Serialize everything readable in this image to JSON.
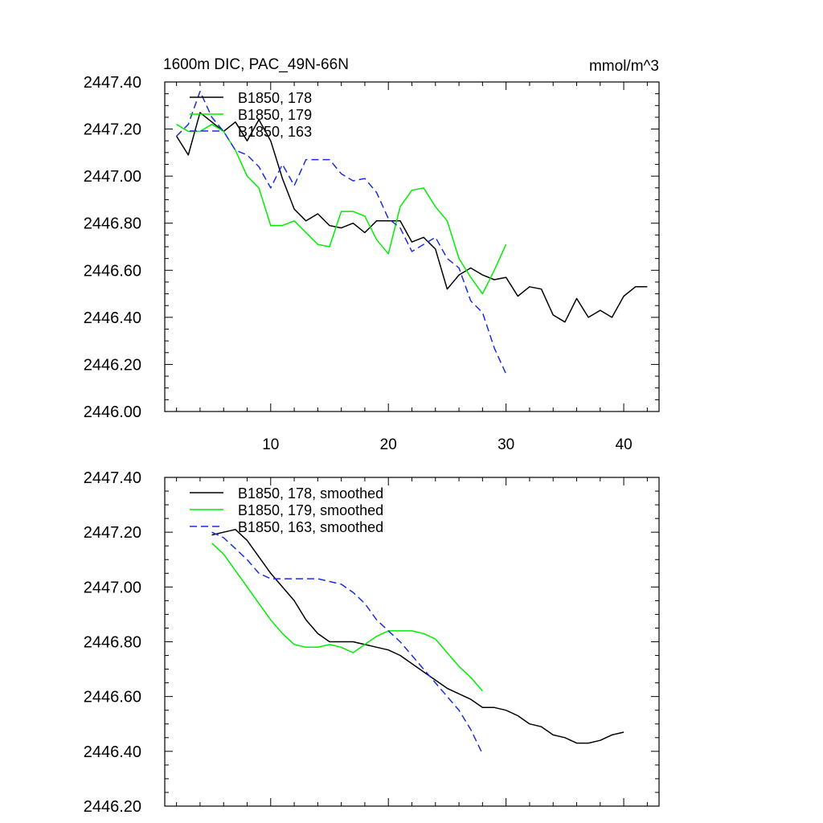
{
  "chart_data": [
    {
      "type": "line",
      "title": "1600m DIC, PAC_49N-66N",
      "units": "mmol/m^3",
      "xlabel": "",
      "ylabel": "",
      "xlim": [
        1,
        43
      ],
      "ylim": [
        2446.0,
        2447.4
      ],
      "x_ticks": [
        10,
        20,
        30,
        40
      ],
      "y_ticks": [
        "2446.00",
        "2446.20",
        "2446.40",
        "2446.60",
        "2446.80",
        "2447.00",
        "2447.20",
        "2447.40"
      ],
      "legend_position": "top-left",
      "series": [
        {
          "name": "B1850, 178",
          "color": "#000000",
          "dash": "solid",
          "x": [
            2,
            3,
            4,
            5,
            6,
            7,
            8,
            9,
            10,
            11,
            12,
            13,
            14,
            15,
            16,
            17,
            18,
            19,
            20,
            21,
            22,
            23,
            24,
            25,
            26,
            27,
            28,
            29,
            30,
            31,
            32,
            33,
            34,
            35,
            36,
            37,
            38,
            39,
            40,
            41,
            42
          ],
          "y": [
            2447.17,
            2447.09,
            2447.27,
            2447.23,
            2447.19,
            2447.23,
            2447.15,
            2447.24,
            2447.15,
            2446.99,
            2446.86,
            2446.81,
            2446.84,
            2446.79,
            2446.78,
            2446.8,
            2446.76,
            2446.81,
            2446.81,
            2446.81,
            2446.72,
            2446.74,
            2446.69,
            2446.52,
            2446.58,
            2446.61,
            2446.58,
            2446.56,
            2446.57,
            2446.49,
            2446.53,
            2446.52,
            2446.41,
            2446.38,
            2446.48,
            2446.4,
            2446.43,
            2446.4,
            2446.49,
            2446.53,
            2446.53
          ]
        },
        {
          "name": "B1850, 179",
          "color": "#00ee00",
          "dash": "solid",
          "x": [
            2,
            3,
            4,
            5,
            6,
            7,
            8,
            9,
            10,
            11,
            12,
            13,
            14,
            15,
            16,
            17,
            18,
            19,
            20,
            21,
            22,
            23,
            24,
            25,
            26,
            27,
            28,
            29,
            30
          ],
          "y": [
            2447.22,
            2447.19,
            2447.19,
            2447.22,
            2447.19,
            2447.11,
            2447.0,
            2446.95,
            2446.79,
            2446.79,
            2446.81,
            2446.76,
            2446.71,
            2446.7,
            2446.85,
            2446.85,
            2446.83,
            2446.73,
            2446.67,
            2446.87,
            2446.94,
            2446.95,
            2446.87,
            2446.81,
            2446.65,
            2446.57,
            2446.5,
            2446.6,
            2446.71
          ]
        },
        {
          "name": "B1850, 163",
          "color": "#1a2ee0",
          "dash": "dashed",
          "x": [
            2,
            3,
            4,
            5,
            6,
            7,
            8,
            9,
            10,
            11,
            12,
            13,
            14,
            15,
            16,
            17,
            18,
            19,
            20,
            21,
            22,
            23,
            24,
            25,
            26,
            27,
            28,
            29,
            30
          ],
          "y": [
            2447.17,
            2447.22,
            2447.36,
            2447.25,
            2447.19,
            2447.11,
            2447.09,
            2447.04,
            2446.95,
            2447.05,
            2446.96,
            2447.07,
            2447.07,
            2447.07,
            2447.01,
            2446.98,
            2446.99,
            2446.93,
            2446.82,
            2446.78,
            2446.68,
            2446.71,
            2446.74,
            2446.65,
            2446.61,
            2446.47,
            2446.42,
            2446.27,
            2446.16
          ]
        }
      ]
    },
    {
      "type": "line",
      "title": "",
      "xlabel": "",
      "ylabel": "",
      "xlim": [
        1,
        43
      ],
      "ylim": [
        2446.2,
        2447.4
      ],
      "x_ticks": [
        10,
        20,
        30,
        40
      ],
      "y_ticks": [
        "2446.20",
        "2446.40",
        "2446.60",
        "2446.80",
        "2447.00",
        "2447.20",
        "2447.40"
      ],
      "legend_position": "top-left",
      "series": [
        {
          "name": "B1850, 178, smoothed",
          "color": "#000000",
          "dash": "solid",
          "x": [
            5,
            6,
            7,
            8,
            9,
            10,
            11,
            12,
            13,
            14,
            15,
            16,
            17,
            18,
            19,
            20,
            21,
            22,
            23,
            24,
            25,
            26,
            27,
            28,
            29,
            30,
            31,
            32,
            33,
            34,
            35,
            36,
            37,
            38,
            39,
            40
          ],
          "y": [
            2447.19,
            2447.2,
            2447.21,
            2447.17,
            2447.11,
            2447.05,
            2447.0,
            2446.95,
            2446.88,
            2446.83,
            2446.8,
            2446.8,
            2446.8,
            2446.79,
            2446.78,
            2446.77,
            2446.75,
            2446.72,
            2446.69,
            2446.66,
            2446.63,
            2446.61,
            2446.59,
            2446.56,
            2446.56,
            2446.55,
            2446.53,
            2446.5,
            2446.49,
            2446.46,
            2446.45,
            2446.43,
            2446.43,
            2446.44,
            2446.46,
            2446.47
          ]
        },
        {
          "name": "B1850, 179, smoothed",
          "color": "#00ee00",
          "dash": "solid",
          "x": [
            5,
            6,
            7,
            8,
            9,
            10,
            11,
            12,
            13,
            14,
            15,
            16,
            17,
            18,
            19,
            20,
            21,
            22,
            23,
            24,
            25,
            26,
            27,
            28
          ],
          "y": [
            2447.16,
            2447.12,
            2447.06,
            2447.0,
            2446.94,
            2446.88,
            2446.83,
            2446.79,
            2446.78,
            2446.78,
            2446.79,
            2446.78,
            2446.76,
            2446.79,
            2446.82,
            2446.84,
            2446.84,
            2446.84,
            2446.83,
            2446.81,
            2446.76,
            2446.71,
            2446.67,
            2446.62
          ]
        },
        {
          "name": "B1850, 163, smoothed",
          "color": "#1a2ee0",
          "dash": "dashed",
          "x": [
            5,
            6,
            7,
            8,
            9,
            10,
            11,
            12,
            13,
            14,
            15,
            16,
            17,
            18,
            19,
            20,
            21,
            22,
            23,
            24,
            25,
            26,
            27,
            28
          ],
          "y": [
            2447.2,
            2447.18,
            2447.14,
            2447.1,
            2447.05,
            2447.03,
            2447.03,
            2447.03,
            2447.03,
            2447.03,
            2447.02,
            2447.01,
            2446.98,
            2446.94,
            2446.88,
            2446.84,
            2446.8,
            2446.75,
            2446.7,
            2446.65,
            2446.6,
            2446.55,
            2446.48,
            2446.39
          ]
        }
      ]
    }
  ]
}
